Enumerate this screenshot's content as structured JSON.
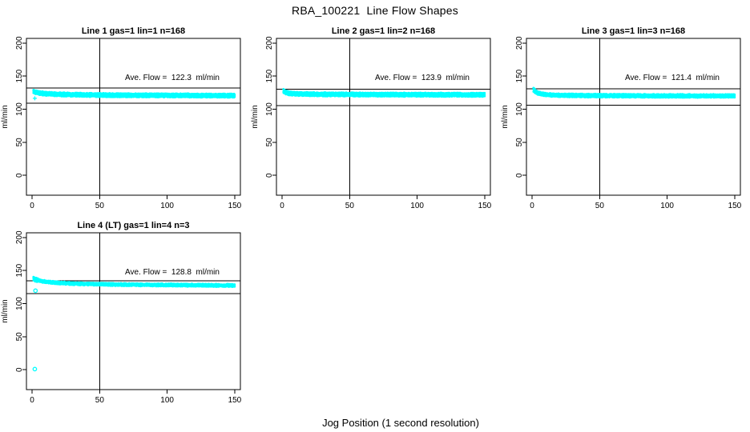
{
  "title": "RBA_100221  Line Flow Shapes",
  "xlabel": "Jog Position (1 second resolution)",
  "colors": {
    "points": "#00FFFF",
    "axis": "#000000",
    "background": "#FFFFFF",
    "text": "#000000"
  },
  "chart_data": [
    {
      "type": "scatter",
      "title": "Line 1 gas=1 lin=1 n=168",
      "ylabel": "ml/min",
      "annotation": "Ave. Flow =  122.3  ml/min",
      "ave_flow_ml_min": 122.3,
      "n_jogs": 168,
      "xlim": [
        -4.2,
        154.2
      ],
      "ylim": [
        -30,
        207
      ],
      "xticks": [
        0,
        50,
        100,
        150
      ],
      "yticks": [
        0,
        50,
        100,
        150,
        200
      ],
      "vline_x": 50,
      "hlines": [
        132,
        109
      ],
      "band_profile": [
        [
          1,
          127
        ],
        [
          2,
          126
        ],
        [
          5,
          124.5
        ],
        [
          10,
          123.4
        ],
        [
          20,
          122.4
        ],
        [
          40,
          121.6
        ],
        [
          70,
          121.1
        ],
        [
          110,
          120.8
        ],
        [
          150,
          120.5
        ]
      ],
      "band_thickness": 4.5,
      "points_x_start": 1,
      "points_x_end": 150,
      "points_x_step": 0.45,
      "n_layers": 3,
      "outliers": [
        {
          "x": 2,
          "y": 116.5,
          "type": "plus"
        }
      ]
    },
    {
      "type": "scatter",
      "title": "Line 2 gas=1 lin=2 n=168",
      "ylabel": "ml/min",
      "annotation": "Ave. Flow =  123.9  ml/min",
      "ave_flow_ml_min": 123.9,
      "n_jogs": 168,
      "xlim": [
        -4.2,
        154.2
      ],
      "ylim": [
        -30,
        207
      ],
      "xticks": [
        0,
        50,
        100,
        150
      ],
      "yticks": [
        0,
        50,
        100,
        150,
        200
      ],
      "vline_x": 50,
      "hlines": [
        130,
        105.5
      ],
      "band_profile": [
        [
          1,
          127.5
        ],
        [
          2,
          125.8
        ],
        [
          5,
          124
        ],
        [
          12,
          123
        ],
        [
          30,
          122.5
        ],
        [
          80,
          122
        ],
        [
          150,
          121.8
        ]
      ],
      "band_thickness": 4.5,
      "points_x_start": 1,
      "points_x_end": 150,
      "points_x_step": 0.45,
      "n_layers": 3,
      "outliers": []
    },
    {
      "type": "scatter",
      "title": "Line 3 gas=1 lin=3 n=168",
      "ylabel": "ml/min",
      "annotation": "Ave. Flow =  121.4  ml/min",
      "ave_flow_ml_min": 121.4,
      "n_jogs": 168,
      "xlim": [
        -4.2,
        154.2
      ],
      "ylim": [
        -30,
        207
      ],
      "xticks": [
        0,
        50,
        100,
        150
      ],
      "yticks": [
        0,
        50,
        100,
        150,
        200
      ],
      "vline_x": 50,
      "hlines": [
        131,
        106
      ],
      "band_profile": [
        [
          1,
          129.5
        ],
        [
          2,
          127.5
        ],
        [
          4,
          124.5
        ],
        [
          8,
          122.5
        ],
        [
          15,
          121.3
        ],
        [
          40,
          120.6
        ],
        [
          90,
          120.2
        ],
        [
          150,
          120
        ]
      ],
      "band_thickness": 4,
      "start_boost": {
        "until": 3,
        "extra": 1.5
      },
      "points_x_start": 1,
      "points_x_end": 150,
      "points_x_step": 0.45,
      "n_layers": 3,
      "outliers": []
    },
    {
      "type": "scatter",
      "title": "Line 4 (LT) gas=1 lin=4 n=3",
      "ylabel": "ml/min",
      "annotation": "Ave. Flow =  128.8  ml/min",
      "ave_flow_ml_min": 128.8,
      "n_jogs": 3,
      "xlim": [
        -4.2,
        154.2
      ],
      "ylim": [
        -30,
        207
      ],
      "xticks": [
        0,
        50,
        100,
        150
      ],
      "yticks": [
        0,
        50,
        100,
        150,
        200
      ],
      "vline_x": 50,
      "hlines": [
        134.5,
        115
      ],
      "band_profile": [
        [
          1,
          138
        ],
        [
          2,
          136.8
        ],
        [
          4,
          135.3
        ],
        [
          7,
          134
        ],
        [
          12,
          132.6
        ],
        [
          20,
          131.2
        ],
        [
          35,
          129.9
        ],
        [
          60,
          128.9
        ],
        [
          100,
          128.1
        ],
        [
          150,
          127.4
        ]
      ],
      "band_thickness": 3,
      "start_boost": {
        "until": 6,
        "extra": 3
      },
      "points_x_start": 1,
      "points_x_end": 150,
      "points_x_step": 0.45,
      "n_layers": 3,
      "outliers": [
        {
          "x": 4.5,
          "y": 136.5,
          "type": "plus"
        },
        {
          "x": 2.5,
          "y": 119.5,
          "type": "circle"
        },
        {
          "x": 2,
          "y": 1,
          "type": "circle"
        }
      ]
    }
  ]
}
